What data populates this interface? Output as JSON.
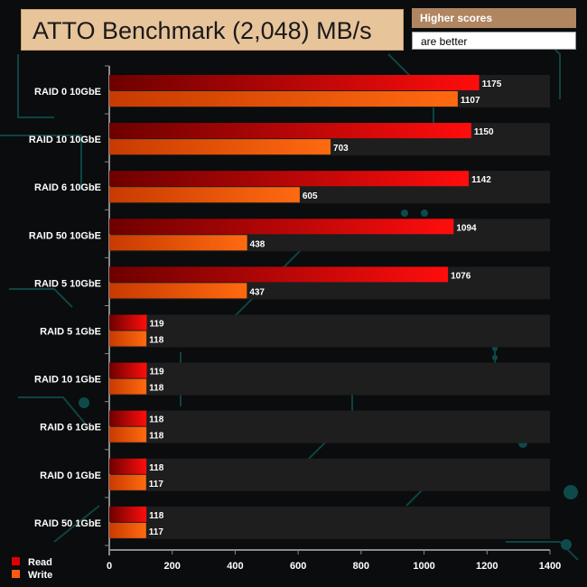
{
  "header": {
    "title": "ATTO Benchmark (2,048) MB/s",
    "note_line1": "Higher scores",
    "note_line2": "are better"
  },
  "colors": {
    "read_start": "#6e0000",
    "read_end": "#ff0d0d",
    "write_start": "#c83a00",
    "write_end": "#ff6a10",
    "band": "#1e1e1e",
    "circuit": "#0f4a4a"
  },
  "chart_data": {
    "type": "bar",
    "orientation": "horizontal",
    "title": "ATTO Benchmark (2,048) MB/s",
    "xlabel": "",
    "ylabel": "",
    "xlim": [
      0,
      1400
    ],
    "xticks": [
      0,
      200,
      400,
      600,
      800,
      1000,
      1200,
      1400
    ],
    "categories": [
      "RAID 0 10GbE",
      "RAID 10 10GbE",
      "RAID 6 10GbE",
      "RAID 50 10GbE",
      "RAID 5 10GbE",
      "RAID 5 1GbE",
      "RAID 10 1GbE",
      "RAID 6 1GbE",
      "RAID 0 1GbE",
      "RAID 50 1GbE"
    ],
    "series": [
      {
        "name": "Read",
        "values": [
          1175,
          1150,
          1142,
          1094,
          1076,
          119,
          119,
          118,
          118,
          118
        ]
      },
      {
        "name": "Write",
        "values": [
          1107,
          703,
          605,
          438,
          437,
          118,
          118,
          118,
          117,
          117
        ]
      }
    ],
    "legend": "bottom-left"
  }
}
